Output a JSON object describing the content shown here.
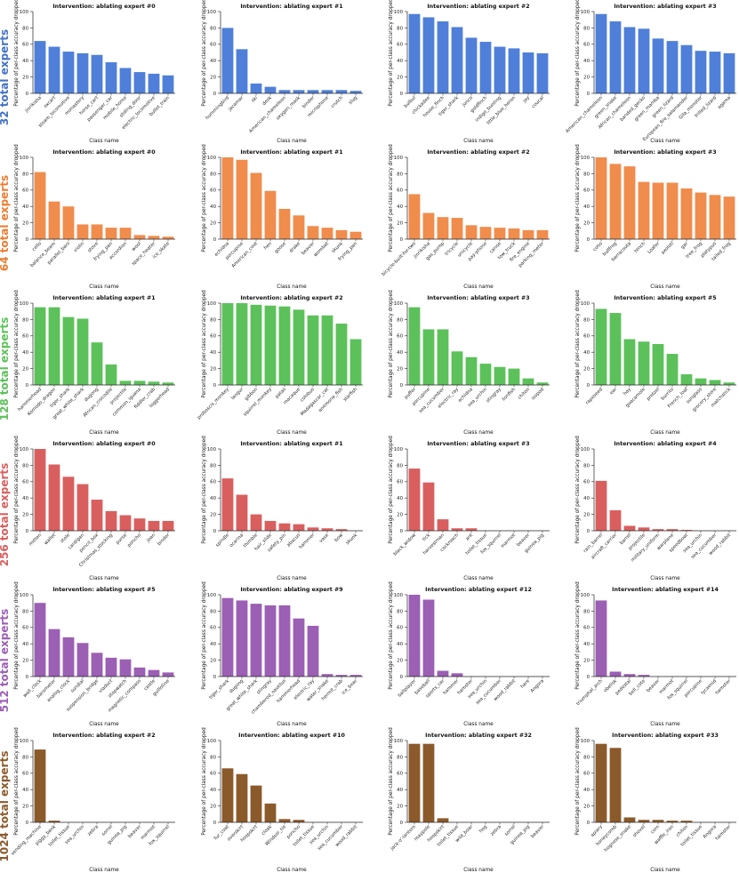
{
  "row_labels": [
    {
      "count": "32",
      "text": "total experts",
      "color": "#4472c4"
    },
    {
      "count": "64",
      "text": "total experts",
      "color": "#ed7d31"
    },
    {
      "count": "128",
      "text": "total experts",
      "color": "#5cc15a"
    },
    {
      "count": "256",
      "text": "total experts",
      "color": "#d95f5f"
    },
    {
      "count": "512",
      "text": "total experts",
      "color": "#9b5fb4"
    },
    {
      "count": "1024",
      "text": "total experts",
      "color": "#8b5a2b"
    }
  ],
  "bar_colors": [
    "#4f7fd8",
    "#f08c4c",
    "#5cc15a",
    "#d95f5f",
    "#9b5fb4",
    "#8b5a2b"
  ],
  "shared_axes": {
    "xlabel": "Class name",
    "ylabel": "Percentage of per-class accuracy dropped",
    "ylim": [
      0,
      100
    ],
    "yticks": [
      0,
      20,
      40,
      60,
      80,
      100
    ]
  },
  "chart_data": [
    {
      "type": "bar",
      "row": 0,
      "col": 0,
      "title": "Intervention: ablating expert #0",
      "categories": [
        "jinrikisha",
        "oxcart",
        "steam_locomotive",
        "monastery",
        "horse_cart",
        "passenger_car",
        "mobile_home",
        "sliding_door",
        "electric_locomotive",
        "bullet_train"
      ],
      "values": [
        64,
        57,
        51,
        49,
        47,
        38,
        31,
        26,
        24,
        22
      ]
    },
    {
      "type": "bar",
      "row": 0,
      "col": 1,
      "title": "Intervention: ablating expert #1",
      "categories": [
        "hummingbird",
        "jacamar",
        "ski",
        "desk",
        "American_chameleon",
        "oxygen_mask",
        "binder",
        "microphone",
        "crutch",
        "slug"
      ],
      "values": [
        80,
        54,
        12,
        8,
        4,
        4,
        4,
        4,
        4,
        3
      ]
    },
    {
      "type": "bar",
      "row": 0,
      "col": 2,
      "title": "Intervention: ablating expert #2",
      "categories": [
        "bulbul",
        "chickadee",
        "house_finch",
        "tiger_shark",
        "junco",
        "goldfinch",
        "indigo_bunting",
        "little_blue_heron",
        "jay",
        "coucal"
      ],
      "values": [
        97,
        93,
        88,
        81,
        68,
        63,
        57,
        55,
        50,
        49
      ]
    },
    {
      "type": "bar",
      "row": 0,
      "col": 3,
      "title": "Intervention: ablating expert #3",
      "categories": [
        "American_chameleon",
        "green_snake",
        "African_chameleon",
        "banded_gecko",
        "green_mamba",
        "green_lizard",
        "European_fire_salamander",
        "Gila_monster",
        "frilled_lizard",
        "agama"
      ],
      "values": [
        97,
        88,
        81,
        79,
        67,
        64,
        59,
        52,
        51,
        49
      ]
    },
    {
      "type": "bar",
      "row": 1,
      "col": 0,
      "title": "Intervention: ablating expert #0",
      "categories": [
        "cello",
        "balance_beam",
        "parallel_bars",
        "violin",
        "stove",
        "frying_pan",
        "accordion",
        "wool",
        "space_heater",
        "ice_skate"
      ],
      "values": [
        82,
        46,
        40,
        18,
        18,
        14,
        14,
        5,
        4,
        3
      ]
    },
    {
      "type": "bar",
      "row": 1,
      "col": 1,
      "title": "Intervention: ablating expert #1",
      "categories": [
        "echidna",
        "porcupine",
        "American_coot",
        "hen",
        "goose",
        "drake",
        "beaver",
        "wombat",
        "skunk",
        "frying_pan"
      ],
      "values": [
        100,
        97,
        81,
        59,
        37,
        29,
        16,
        14,
        11,
        9
      ]
    },
    {
      "type": "bar",
      "row": 1,
      "col": 2,
      "title": "Intervention: ablating expert #2",
      "categories": [
        "bicycle-built-for-two",
        "jinrikisha",
        "gas_pump",
        "tricycle",
        "unicycle",
        "pay-phone",
        "canoe",
        "tow_truck",
        "fire_engine",
        "parking_meter"
      ],
      "values": [
        55,
        32,
        27,
        26,
        17,
        15,
        14,
        13,
        11,
        11
      ]
    },
    {
      "type": "bar",
      "row": 1,
      "col": 3,
      "title": "Intervention: ablating expert #3",
      "categories": [
        "coho",
        "bullfrog",
        "barracouta",
        "tench",
        "Loafer",
        "axolotl",
        "gar",
        "tree_frog",
        "platypus",
        "tailed_frog"
      ],
      "values": [
        100,
        92,
        89,
        70,
        69,
        69,
        62,
        57,
        54,
        52
      ]
    },
    {
      "type": "bar",
      "row": 2,
      "col": 0,
      "title": "Intervention: ablating expert #1",
      "categories": [
        "hammerhead",
        "Komodo_dragon",
        "tiger_shark",
        "great_white_shark",
        "dugong",
        "African_crocodile",
        "projectile",
        "common_iguana",
        "fiddler_crab",
        "loggerhead"
      ],
      "values": [
        95,
        95,
        83,
        81,
        52,
        25,
        5,
        5,
        4,
        3
      ]
    },
    {
      "type": "bar",
      "row": 2,
      "col": 1,
      "title": "Intervention: ablating expert #2",
      "categories": [
        "proboscis_monkey",
        "langur",
        "gibbon",
        "squirrel_monkey",
        "patas",
        "macaque",
        "colobus",
        "Madagascar_cat",
        "anemone_fish",
        "starfish"
      ],
      "values": [
        100,
        100,
        98,
        97,
        96,
        92,
        85,
        85,
        75,
        56
      ]
    },
    {
      "type": "bar",
      "row": 2,
      "col": 2,
      "title": "Intervention: ablating expert #3",
      "categories": [
        "puffer",
        "porcupine",
        "sea_cucumber",
        "electric_ray",
        "echidna",
        "sea_urchin",
        "stingray",
        "lionfish",
        "chiton",
        "isopod"
      ],
      "values": [
        95,
        68,
        68,
        41,
        34,
        26,
        22,
        20,
        8,
        3
      ]
    },
    {
      "type": "bar",
      "row": 2,
      "col": 3,
      "title": "Intervention: ablating expert #5",
      "categories": [
        "rapeseed",
        "ear",
        "hay",
        "guacamole",
        "pretzel",
        "burrito",
        "French_loaf",
        "sunglass",
        "grocery_store",
        "matchstick"
      ],
      "values": [
        93,
        88,
        56,
        53,
        50,
        38,
        13,
        8,
        6,
        3
      ]
    },
    {
      "type": "bar",
      "row": 3,
      "col": 0,
      "title": "Intervention: ablating expert #0",
      "categories": [
        "mitten",
        "wallet",
        "stole",
        "cardigan",
        "pencil_box",
        "Christmas_stocking",
        "purse",
        "poncho",
        "jean",
        "binder"
      ],
      "values": [
        100,
        81,
        66,
        57,
        38,
        24,
        19,
        15,
        12,
        12
      ]
    },
    {
      "type": "bar",
      "row": 3,
      "col": 1,
      "title": "Intervention: ablating expert #1",
      "categories": [
        "spindle",
        "ocarina",
        "thimble",
        "hair_slide",
        "safety_pin",
        "abacus",
        "hammer",
        "vase",
        "bow",
        "skunk"
      ],
      "values": [
        64,
        44,
        20,
        12,
        9,
        8,
        4,
        3,
        2,
        0
      ]
    },
    {
      "type": "bar",
      "row": 3,
      "col": 2,
      "title": "Intervention: ablating expert #3",
      "categories": [
        "black_widow",
        "tick",
        "harvestman",
        "cockroach",
        "ant",
        "toilet_tissue",
        "fox_squirrel",
        "marmot",
        "beaver",
        "guinea_pig"
      ],
      "values": [
        76,
        59,
        14,
        3,
        3,
        0,
        0,
        0,
        0,
        0
      ]
    },
    {
      "type": "bar",
      "row": 3,
      "col": 3,
      "title": "Intervention: ablating expert #4",
      "categories": [
        "rain_barrel",
        "aircraft_carrier",
        "barrel",
        "projectile",
        "military_uniform",
        "warplane",
        "speedboat",
        "sea_urchin",
        "sea_cucumber",
        "wood_rabbit"
      ],
      "values": [
        61,
        25,
        6,
        4,
        2,
        2,
        1,
        0,
        0,
        0
      ]
    },
    {
      "type": "bar",
      "row": 4,
      "col": 0,
      "title": "Intervention: ablating expert #5",
      "categories": [
        "wall_clock",
        "barometer",
        "analog_clock",
        "sundial",
        "suspension_bridge",
        "viaduct",
        "stopwatch",
        "magnetic_compass",
        "castle",
        "guillotine"
      ],
      "values": [
        90,
        58,
        48,
        41,
        29,
        23,
        21,
        11,
        8,
        5
      ]
    },
    {
      "type": "bar",
      "row": 4,
      "col": 1,
      "title": "Intervention: ablating expert #9",
      "categories": [
        "tiger_shark",
        "dugong",
        "great_white_shark",
        "stingray",
        "chambered_nautilus",
        "hammerhead",
        "electric_ray",
        "water_snake",
        "hermit_crab",
        "ice_bear"
      ],
      "values": [
        96,
        93,
        89,
        87,
        87,
        71,
        62,
        3,
        2,
        2
      ]
    },
    {
      "type": "bar",
      "row": 4,
      "col": 2,
      "title": "Intervention: ablating expert #12",
      "categories": [
        "ballplayer",
        "baseball",
        "sports_car",
        "hammer",
        "hamster",
        "sea_urchin",
        "sea_cucumber",
        "wood_rabbit",
        "hare",
        "Angora"
      ],
      "values": [
        100,
        94,
        7,
        4,
        0,
        0,
        0,
        0,
        0,
        0
      ]
    },
    {
      "type": "bar",
      "row": 4,
      "col": 3,
      "title": "Intervention: ablating expert #14",
      "categories": [
        "triumphal_arch",
        "obelisk",
        "pedestal",
        "bell_cote",
        "beaver",
        "marmot",
        "fox_squirrel",
        "porcupine",
        "lycaenid",
        "hamster"
      ],
      "values": [
        93,
        6,
        3,
        2,
        0,
        0,
        0,
        0,
        0,
        0
      ]
    },
    {
      "type": "bar",
      "row": 5,
      "col": 0,
      "title": "Intervention: ablating expert #2",
      "categories": [
        "vending_machine",
        "piggy_bank",
        "toilet_tissue",
        "sea_urchin",
        "zebra",
        "sorrel",
        "guinea_pig",
        "beaver",
        "marmot",
        "fox_squirrel"
      ],
      "values": [
        89,
        2,
        0,
        0,
        0,
        0,
        0,
        0,
        0,
        0
      ]
    },
    {
      "type": "bar",
      "row": 5,
      "col": 1,
      "title": "Intervention: ablating expert #10",
      "categories": [
        "fur_coat",
        "overskirt",
        "hoopskirt",
        "cloak",
        "Windsor_tie",
        "poncho",
        "toilet_tissue",
        "sea_urchin",
        "sea_cucumber",
        "wood_rabbit"
      ],
      "values": [
        66,
        59,
        45,
        23,
        4,
        3,
        0,
        0,
        0,
        0
      ]
    },
    {
      "type": "bar",
      "row": 5,
      "col": 2,
      "title": "Intervention: ablating expert #32",
      "categories": [
        "jack-o'-lantern",
        "maypole",
        "hoopskirt",
        "toilet_tissue",
        "wild_boar",
        "hog",
        "zebra",
        "sorrel",
        "guinea_pig",
        "beaver"
      ],
      "values": [
        96,
        96,
        5,
        0,
        0,
        0,
        0,
        0,
        0,
        0
      ]
    },
    {
      "type": "bar",
      "row": 5,
      "col": 3,
      "title": "Intervention: ablating expert #33",
      "categories": [
        "apiary",
        "honeycomb",
        "hognose_snake",
        "shovel",
        "corn",
        "waffle_iron",
        "chiton",
        "toilet_tissue",
        "Angora",
        "hamster"
      ],
      "values": [
        96,
        91,
        6,
        3,
        3,
        2,
        2,
        0,
        0,
        0
      ]
    }
  ]
}
